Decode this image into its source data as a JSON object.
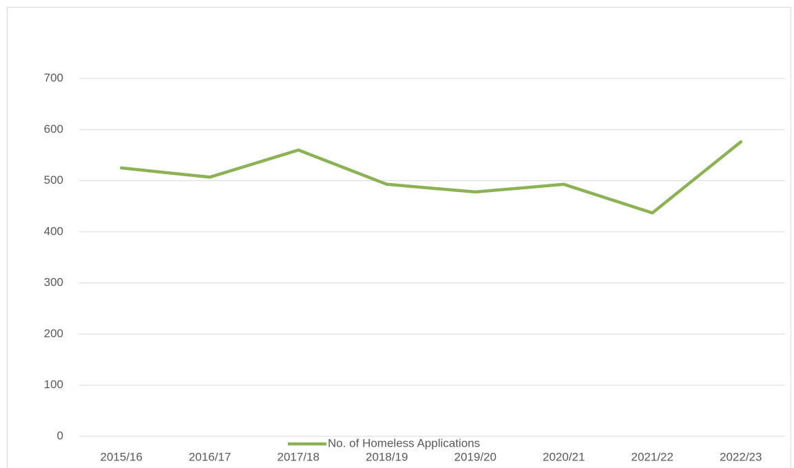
{
  "chart_data": {
    "type": "line",
    "categories": [
      "2015/16",
      "2016/17",
      "2017/18",
      "2018/19",
      "2019/20",
      "2020/21",
      "2021/22",
      "2022/23"
    ],
    "series": [
      {
        "name": "No. of Homeless Applications",
        "color": "#8db255",
        "values": [
          525,
          507,
          560,
          493,
          478,
          493,
          437,
          576
        ]
      }
    ],
    "ylim": [
      0,
      700
    ],
    "yticks": [
      0,
      100,
      200,
      300,
      400,
      500,
      600,
      700
    ],
    "grid": true,
    "legend": "bottom"
  }
}
